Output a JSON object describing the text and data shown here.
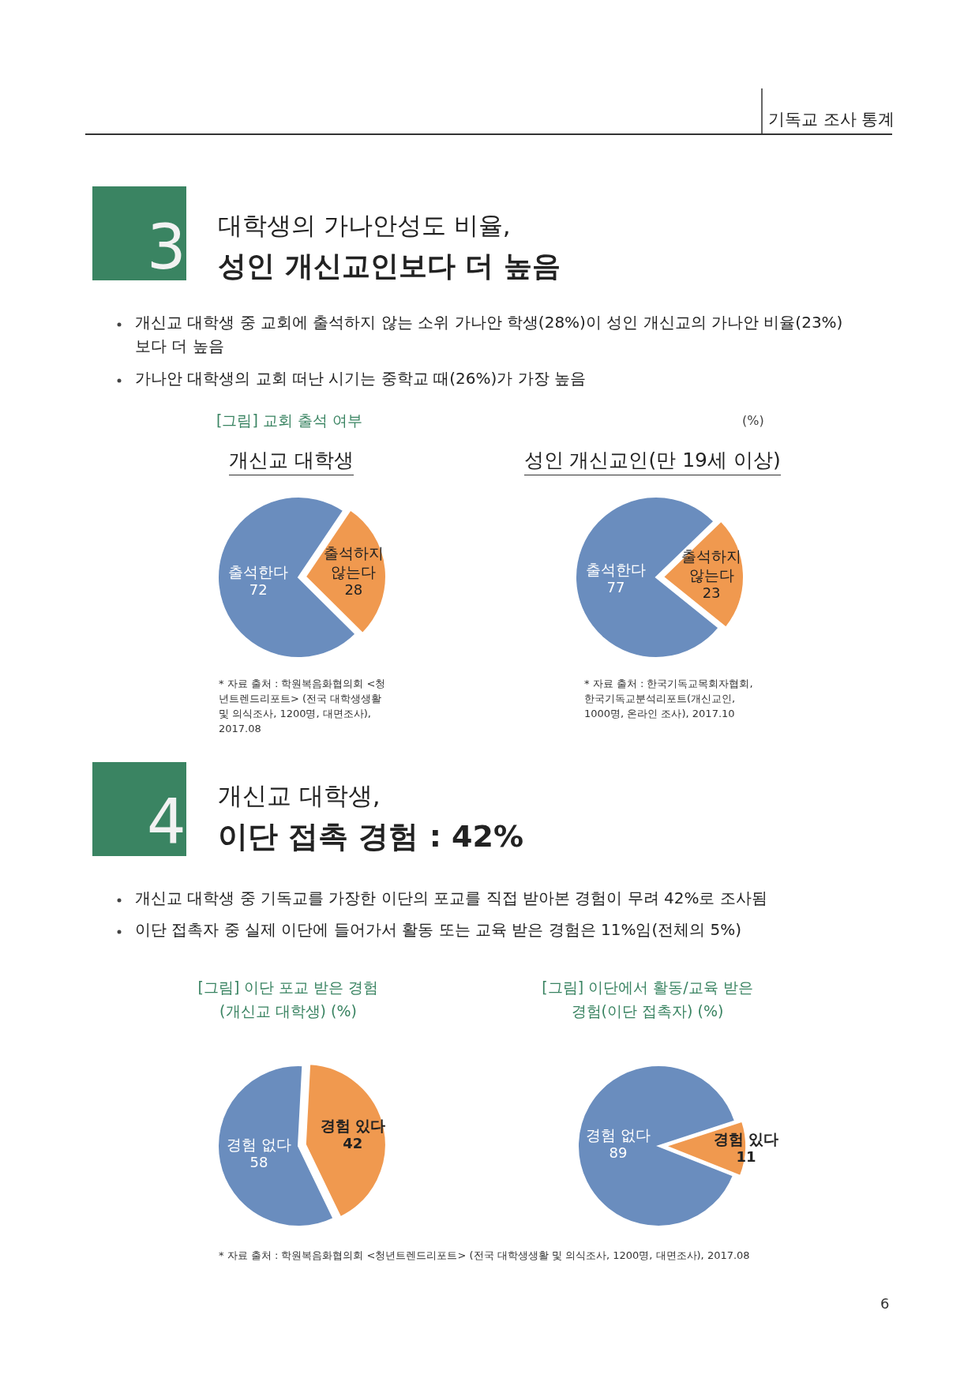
{
  "chart_data": [
    {
      "type": "pie",
      "title": "개신교 대학생",
      "subtitle": "[그림] 교회 출석 여부",
      "categories": [
        "출석한다",
        "출석하지 않는다"
      ],
      "values": [
        72,
        28
      ],
      "colors": [
        "#6a8dbe",
        "#f0994f"
      ],
      "data_labels": true,
      "annotations": [
        "기독교 조사 통계",
        "3",
        "대학생의 가나안성도 비율,",
        "성인 개신교인보다 더 높음",
        "개신교 대학생 중 교회에 출석하지 않는 소위 가나안 학생(28%)이 성인 개신교의 가나안 비율(23%) 보다 더 높음",
        "가나안 대학생의 교회 떠난 시기는 중학교 때(26%)가 가장 높음",
        "(%)",
        "* 자료 출처 : 학원복음화협의회 <청년트렌드리포트> (전국 대학생생활 및 의식조사, 1200명, 대면조사), 2017.08",
        "6"
      ]
    },
    {
      "type": "pie",
      "title": "성인 개신교인(만 19세 이상)",
      "categories": [
        "출석한다",
        "출석하지 않는다"
      ],
      "values": [
        77,
        23
      ],
      "colors": [
        "#6a8dbe",
        "#f0994f"
      ],
      "data_labels": true,
      "annotations": [
        "* 자료 출처 : 한국기독교목회자협회, 한국기독교분석리포트(개신교인, 1000명, 온라인 조사), 2017.10"
      ]
    },
    {
      "type": "pie",
      "title": "[그림] 이단 포교 받은 경험",
      "subtitle": "(개신교 대학생) (%)",
      "categories": [
        "경험 없다",
        "경험 있다"
      ],
      "values": [
        58,
        42
      ],
      "colors": [
        "#6a8dbe",
        "#f0994f"
      ],
      "data_labels": true,
      "annotations": [
        "4",
        "개신교 대학생,",
        "이단 접촉 경험 : 42%",
        "개신교 대학생 중 기독교를 가장한 이단의 포교를 직접 받아본 경험이 무려 42%로 조사됨",
        "이단 접촉자 중 실제 이단에 들어가서 활동 또는 교육 받은 경험은 11%임(전체의 5%)",
        "* 자료 출처 : 학원복음화협의회 <청년트렌드리포트> (전국 대학생생활 및 의식조사, 1200명, 대면조사), 2017.08"
      ]
    },
    {
      "type": "pie",
      "title": "[그림] 이단에서 활동/교육 받은",
      "subtitle": "경험(이단 접촉자) (%)",
      "categories": [
        "경험 없다",
        "경험 있다"
      ],
      "values": [
        89,
        11
      ],
      "colors": [
        "#6a8dbe",
        "#f0994f"
      ],
      "data_labels": true
    }
  ]
}
